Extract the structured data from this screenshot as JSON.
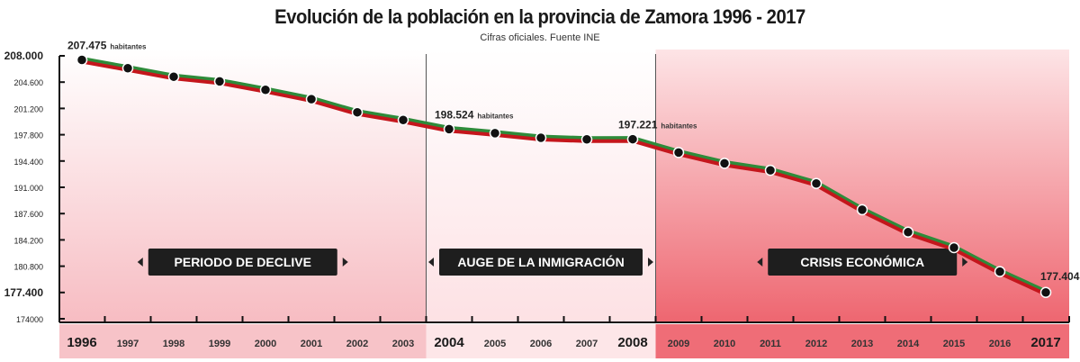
{
  "chart_data": {
    "type": "line",
    "title": "Evolución de la población en la provincia de Zamora 1996 - 2017",
    "subtitle": "Cifras oficiales. Fuente INE",
    "x": [
      "1996",
      "1997",
      "1998",
      "1999",
      "2000",
      "2001",
      "2002",
      "2003",
      "2004",
      "2005",
      "2006",
      "2007",
      "2008",
      "2009",
      "2010",
      "2011",
      "2012",
      "2013",
      "2014",
      "2015",
      "2016",
      "2017"
    ],
    "bold_years": [
      "1996",
      "2004",
      "2008",
      "2017"
    ],
    "values": [
      207475,
      206400,
      205300,
      204700,
      203600,
      202400,
      200700,
      199700,
      198524,
      198000,
      197400,
      197200,
      197221,
      195500,
      194100,
      193200,
      191500,
      188100,
      185200,
      183200,
      180100,
      177404
    ],
    "ylim": [
      174000,
      208000
    ],
    "yticks": [
      {
        "value": 208000,
        "label": "208.000",
        "bold": true
      },
      {
        "value": 204600,
        "label": "204.600"
      },
      {
        "value": 201200,
        "label": "201.200"
      },
      {
        "value": 197800,
        "label": "197.800"
      },
      {
        "value": 194400,
        "label": "194.400"
      },
      {
        "value": 191000,
        "label": "191.000"
      },
      {
        "value": 187600,
        "label": "187.600"
      },
      {
        "value": 184200,
        "label": "184.200"
      },
      {
        "value": 180800,
        "label": "180.800"
      },
      {
        "value": 177400,
        "label": "177.400",
        "bold": true
      },
      {
        "value": 174000,
        "label": "174000"
      }
    ],
    "annotations": [
      {
        "year": "1996",
        "number": "207.475",
        "unit": "habitantes"
      },
      {
        "year": "2004",
        "number": "198.524",
        "unit": "habitantes"
      },
      {
        "year": "2008",
        "number": "197.221",
        "unit": "habitantes"
      },
      {
        "year": "2017",
        "number": "177.404",
        "unit": ""
      }
    ],
    "periods": [
      {
        "label": "PERIODO DE DECLIVE",
        "from": "1996",
        "to": "2003"
      },
      {
        "label": "AUGE DE LA INMIGRACIÓN",
        "from": "2004",
        "to": "2008"
      },
      {
        "label": "CRISIS ECONÓMICA",
        "from": "2009",
        "to": "2017"
      }
    ],
    "colors": {
      "line_top": "#2e8b3a",
      "line_bottom": "#c4161c",
      "marker": "#111111",
      "label_box": "#1e1e1e",
      "region_1": "#f7c3c8",
      "region_2": "#fde6e8",
      "region_3": "#ef6d77"
    },
    "grid": false
  }
}
